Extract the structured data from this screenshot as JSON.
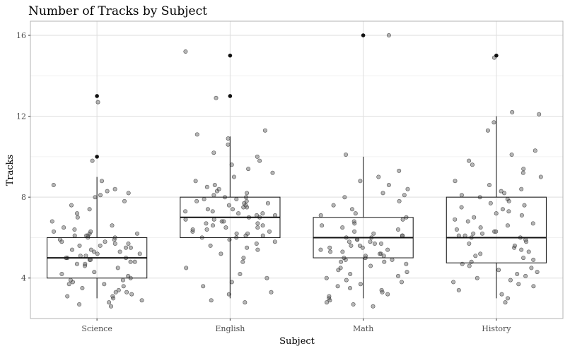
{
  "chart_data": {
    "type": "boxplot-jitter",
    "title": "Number of Tracks by Subject",
    "xlabel": "Subject",
    "ylabel": "Tracks",
    "categories": [
      "Science",
      "English",
      "Math",
      "History"
    ],
    "yticks": [
      4,
      8,
      12,
      16
    ],
    "ylim": [
      2.0,
      16.7
    ],
    "grid": true,
    "boxes": [
      {
        "category": "Science",
        "q1": 4,
        "median": 5,
        "q3": 6,
        "whisker_low": 3,
        "whisker_high": 9,
        "outliers": [
          10,
          13
        ]
      },
      {
        "category": "English",
        "q1": 6,
        "median": 7,
        "q3": 8,
        "whisker_low": 3,
        "whisker_high": 11,
        "outliers": [
          13,
          15
        ]
      },
      {
        "category": "Math",
        "q1": 5,
        "median": 6,
        "q3": 7,
        "whisker_low": 3,
        "whisker_high": 10,
        "outliers": [
          16
        ]
      },
      {
        "category": "History",
        "q1": 4.75,
        "median": 6,
        "q3": 8,
        "whisker_low": 3,
        "whisker_high": 12,
        "outliers": [
          15
        ]
      }
    ],
    "points": [
      {
        "category": "Science",
        "y": [
          2.6,
          2.7,
          2.8,
          2.9,
          3.0,
          3.1,
          3.1,
          3.2,
          3.3,
          3.3,
          3.4,
          3.5,
          3.6,
          3.7,
          3.7,
          3.8,
          3.9,
          3.9,
          4.0,
          4.1,
          4.2,
          4.3,
          4.5,
          4.6,
          4.7,
          4.7,
          4.8,
          4.8,
          4.9,
          4.9,
          5.0,
          5.0,
          5.0,
          5.1,
          5.1,
          5.2,
          5.2,
          5.3,
          5.3,
          5.4,
          5.4,
          5.5,
          5.5,
          5.6,
          5.6,
          5.7,
          5.7,
          5.8,
          5.8,
          5.9,
          5.9,
          6.0,
          6.0,
          6.1,
          6.1,
          6.1,
          6.2,
          6.2,
          6.3,
          6.3,
          6.4,
          6.5,
          6.6,
          6.8,
          7.0,
          7.2,
          7.4,
          7.6,
          7.8,
          8.0,
          8.1,
          8.2,
          8.3,
          8.4,
          8.6,
          8.8,
          9.8,
          12.7
        ]
      },
      {
        "category": "English",
        "y": [
          2.8,
          2.9,
          3.2,
          3.3,
          3.6,
          3.8,
          4.0,
          4.2,
          4.5,
          4.8,
          5.0,
          5.2,
          5.4,
          5.5,
          5.6,
          5.7,
          5.8,
          5.9,
          6.0,
          6.0,
          6.1,
          6.1,
          6.2,
          6.2,
          6.3,
          6.3,
          6.4,
          6.4,
          6.5,
          6.5,
          6.6,
          6.6,
          6.7,
          6.7,
          6.8,
          6.8,
          6.9,
          6.9,
          7.0,
          7.0,
          7.1,
          7.1,
          7.2,
          7.2,
          7.3,
          7.3,
          7.4,
          7.4,
          7.5,
          7.5,
          7.6,
          7.6,
          7.7,
          7.7,
          7.8,
          7.8,
          7.9,
          7.9,
          8.0,
          8.0,
          8.1,
          8.2,
          8.3,
          8.4,
          8.5,
          8.6,
          8.8,
          9.0,
          9.2,
          9.4,
          9.6,
          9.8,
          10.0,
          10.2,
          10.6,
          10.9,
          11.1,
          11.3,
          12.9,
          15.2
        ]
      },
      {
        "category": "Math",
        "y": [
          2.6,
          2.7,
          2.8,
          2.9,
          3.0,
          3.1,
          3.2,
          3.3,
          3.4,
          3.5,
          3.6,
          3.7,
          3.8,
          3.9,
          4.0,
          4.1,
          4.2,
          4.3,
          4.4,
          4.5,
          4.6,
          4.7,
          4.8,
          4.8,
          4.9,
          4.9,
          5.0,
          5.0,
          5.1,
          5.1,
          5.2,
          5.2,
          5.3,
          5.3,
          5.4,
          5.4,
          5.5,
          5.5,
          5.6,
          5.6,
          5.7,
          5.7,
          5.8,
          5.8,
          5.9,
          5.9,
          6.0,
          6.0,
          6.1,
          6.1,
          6.2,
          6.3,
          6.4,
          6.5,
          6.6,
          6.7,
          6.8,
          6.9,
          7.0,
          7.1,
          7.2,
          7.4,
          7.6,
          7.8,
          8.0,
          8.1,
          8.2,
          8.4,
          8.6,
          8.8,
          9.0,
          9.3,
          10.1,
          16.0
        ]
      },
      {
        "category": "History",
        "y": [
          2.8,
          3.0,
          3.2,
          3.4,
          3.6,
          3.7,
          3.8,
          3.9,
          4.0,
          4.1,
          4.2,
          4.3,
          4.4,
          4.5,
          4.6,
          4.7,
          4.8,
          4.9,
          5.0,
          5.1,
          5.2,
          5.3,
          5.4,
          5.5,
          5.6,
          5.7,
          5.8,
          5.9,
          6.0,
          6.0,
          6.1,
          6.1,
          6.2,
          6.2,
          6.3,
          6.3,
          6.4,
          6.5,
          6.6,
          6.7,
          6.8,
          6.9,
          7.0,
          7.1,
          7.2,
          7.3,
          7.4,
          7.5,
          7.6,
          7.7,
          7.8,
          7.9,
          8.0,
          8.1,
          8.2,
          8.3,
          8.4,
          8.6,
          8.8,
          9.0,
          9.2,
          9.4,
          9.6,
          9.8,
          10.1,
          10.3,
          11.3,
          11.7,
          12.1,
          12.2,
          14.9
        ]
      }
    ]
  }
}
